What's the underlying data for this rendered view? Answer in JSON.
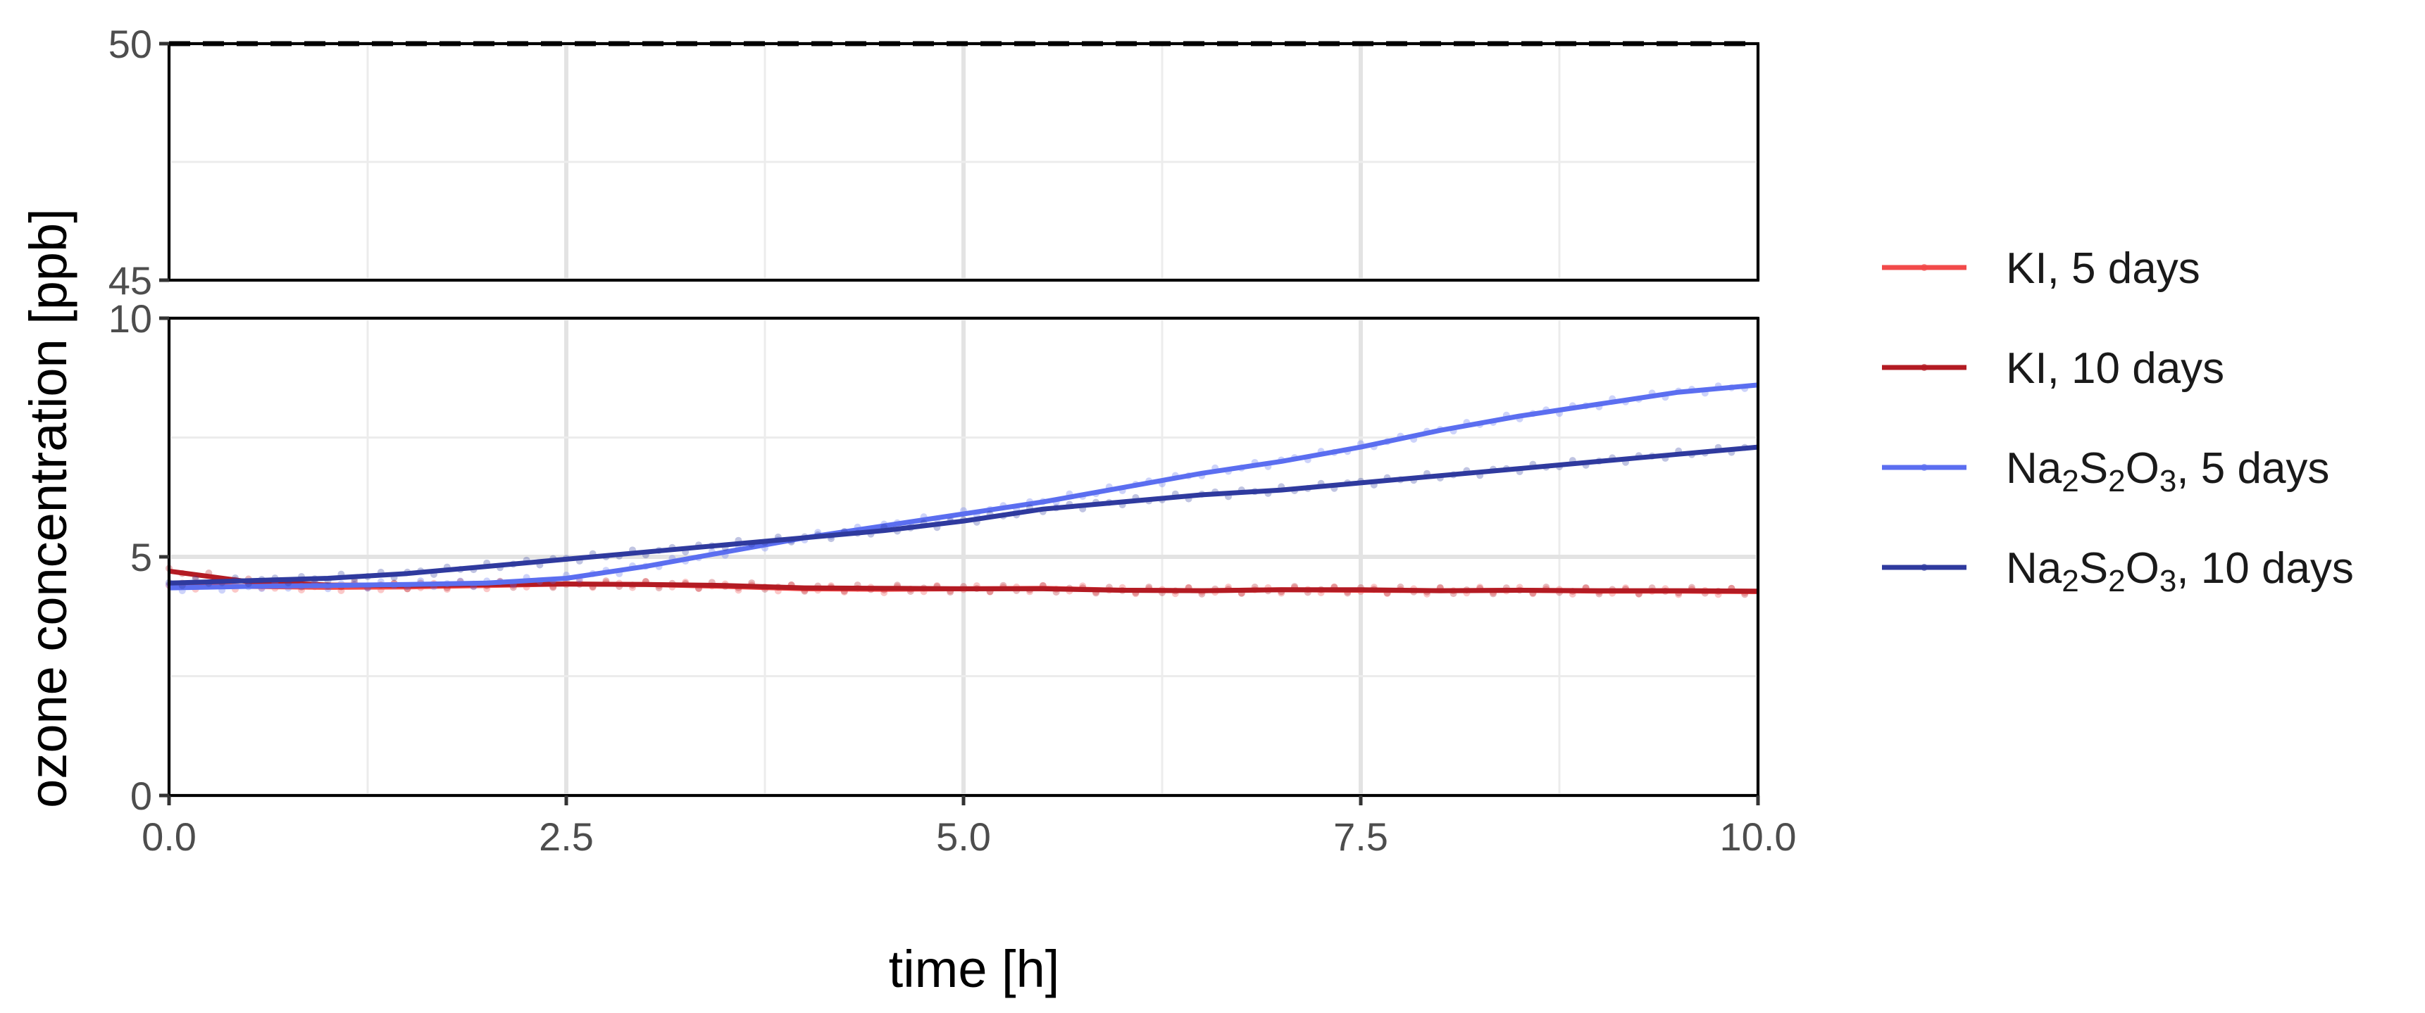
{
  "chart_data": {
    "type": "line",
    "layout": "broken y-axis with two stacked panels sharing the x axis",
    "xlabel": "time [h]",
    "ylabel": "ozone concentration [ppb]",
    "xlim": [
      0,
      10
    ],
    "x_ticks": [
      0,
      2.5,
      5,
      7.5,
      10
    ],
    "x_tick_labels": [
      "0.0",
      "2.5",
      "5.0",
      "7.5",
      "10.0"
    ],
    "grid": true,
    "legend_position": "right",
    "panels": [
      {
        "name": "upper",
        "ylim": [
          45,
          50
        ],
        "y_ticks": [
          45,
          50
        ],
        "y_tick_labels": [
          "45",
          "50"
        ],
        "reference_line": {
          "y": 50,
          "style": "dashed",
          "color": "#000000"
        }
      },
      {
        "name": "lower",
        "ylim": [
          0,
          10
        ],
        "y_ticks": [
          0,
          5,
          10
        ],
        "y_tick_labels": [
          "0",
          "5",
          "10"
        ]
      }
    ],
    "series": [
      {
        "name": "KI, 5 days",
        "legend_parts": [
          {
            "t": "KI, 5 days"
          }
        ],
        "color": "#f24a4a",
        "x": [
          0,
          0.5,
          1,
          1.5,
          2,
          2.5,
          3,
          3.5,
          4,
          4.5,
          5,
          5.5,
          6,
          6.5,
          7,
          7.5,
          8,
          8.5,
          9,
          9.5,
          10
        ],
        "y": [
          4.4,
          4.38,
          4.36,
          4.37,
          4.4,
          4.43,
          4.42,
          4.38,
          4.33,
          4.32,
          4.33,
          4.34,
          4.3,
          4.29,
          4.31,
          4.3,
          4.29,
          4.3,
          4.28,
          4.28,
          4.27
        ]
      },
      {
        "name": "KI, 10 days",
        "legend_parts": [
          {
            "t": "KI, 10 days"
          }
        ],
        "color": "#b31b23",
        "x": [
          0,
          0.5,
          1,
          1.5,
          2,
          2.5,
          3,
          3.5,
          4,
          4.5,
          5,
          5.5,
          6,
          6.5,
          7,
          7.5,
          8,
          8.5,
          9,
          9.5,
          10
        ],
        "y": [
          4.7,
          4.48,
          4.41,
          4.4,
          4.42,
          4.43,
          4.42,
          4.4,
          4.35,
          4.34,
          4.33,
          4.33,
          4.3,
          4.29,
          4.31,
          4.31,
          4.29,
          4.3,
          4.29,
          4.29,
          4.28
        ]
      },
      {
        "name": "Na2S2O3, 5 days",
        "legend_parts": [
          {
            "t": "Na"
          },
          {
            "t": "2",
            "sub": true
          },
          {
            "t": "S"
          },
          {
            "t": "2",
            "sub": true
          },
          {
            "t": "O"
          },
          {
            "t": "3",
            "sub": true
          },
          {
            "t": ", 5 days"
          }
        ],
        "color": "#5b6ef0",
        "x": [
          0,
          0.5,
          1,
          1.5,
          2,
          2.5,
          3,
          3.5,
          4,
          4.5,
          5,
          5.5,
          6,
          6.5,
          7,
          7.5,
          8,
          8.5,
          9,
          9.5,
          10
        ],
        "y": [
          4.35,
          4.38,
          4.4,
          4.42,
          4.45,
          4.55,
          4.8,
          5.1,
          5.4,
          5.65,
          5.9,
          6.15,
          6.45,
          6.75,
          7.0,
          7.3,
          7.65,
          7.95,
          8.2,
          8.45,
          8.6
        ]
      },
      {
        "name": "Na2S2O3, 10 days",
        "legend_parts": [
          {
            "t": "Na"
          },
          {
            "t": "2",
            "sub": true
          },
          {
            "t": "S"
          },
          {
            "t": "2",
            "sub": true
          },
          {
            "t": "O"
          },
          {
            "t": "3",
            "sub": true
          },
          {
            "t": ", 10 days"
          }
        ],
        "color": "#2f3a9e",
        "x": [
          0,
          0.5,
          1,
          1.5,
          2,
          2.5,
          3,
          3.5,
          4,
          4.5,
          5,
          5.5,
          6,
          6.5,
          7,
          7.5,
          8,
          8.5,
          9,
          9.5,
          10
        ],
        "y": [
          4.45,
          4.5,
          4.55,
          4.65,
          4.8,
          4.95,
          5.1,
          5.25,
          5.4,
          5.55,
          5.75,
          6.0,
          6.15,
          6.3,
          6.4,
          6.55,
          6.7,
          6.85,
          7.0,
          7.15,
          7.3
        ]
      }
    ]
  }
}
